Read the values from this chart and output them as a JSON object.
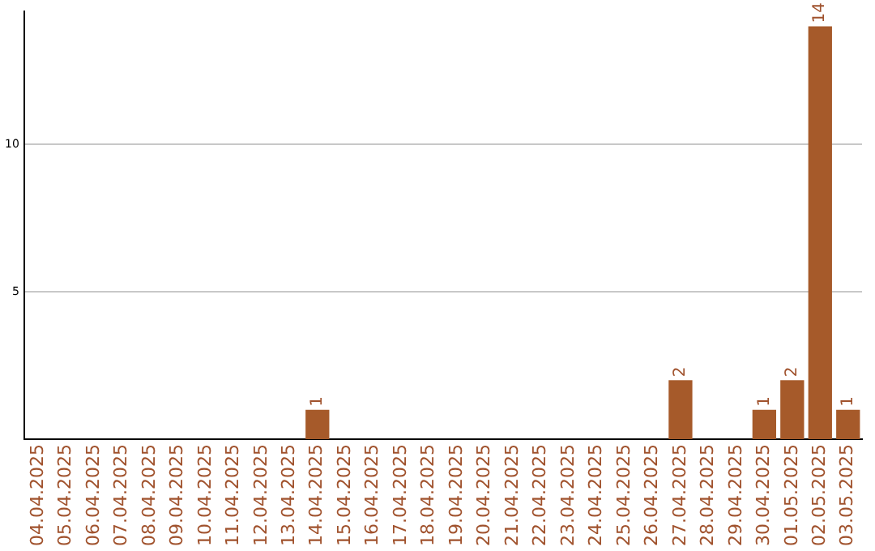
{
  "chart_data": {
    "type": "bar",
    "categories": [
      "04.04.2025",
      "05.04.2025",
      "06.04.2025",
      "07.04.2025",
      "08.04.2025",
      "09.04.2025",
      "10.04.2025",
      "11.04.2025",
      "12.04.2025",
      "13.04.2025",
      "14.04.2025",
      "15.04.2025",
      "16.04.2025",
      "17.04.2025",
      "18.04.2025",
      "19.04.2025",
      "20.04.2025",
      "21.04.2025",
      "22.04.2025",
      "23.04.2025",
      "24.04.2025",
      "25.04.2025",
      "26.04.2025",
      "27.04.2025",
      "28.04.2025",
      "29.04.2025",
      "30.04.2025",
      "01.05.2025",
      "02.05.2025",
      "03.05.2025"
    ],
    "values": [
      0,
      0,
      0,
      0,
      0,
      0,
      0,
      0,
      0,
      0,
      1,
      0,
      0,
      0,
      0,
      0,
      0,
      0,
      0,
      0,
      0,
      0,
      0,
      2,
      0,
      0,
      1,
      2,
      14,
      1
    ],
    "value_labels": [
      null,
      null,
      null,
      null,
      null,
      null,
      null,
      null,
      null,
      null,
      "1",
      null,
      null,
      null,
      null,
      null,
      null,
      null,
      null,
      null,
      null,
      null,
      null,
      "2",
      null,
      null,
      "1",
      "2",
      "14",
      "1"
    ],
    "color": "#a65a2a",
    "ylim": [
      0,
      14.5
    ],
    "yticks": [
      5,
      10
    ],
    "grid": "y",
    "legend": false
  }
}
